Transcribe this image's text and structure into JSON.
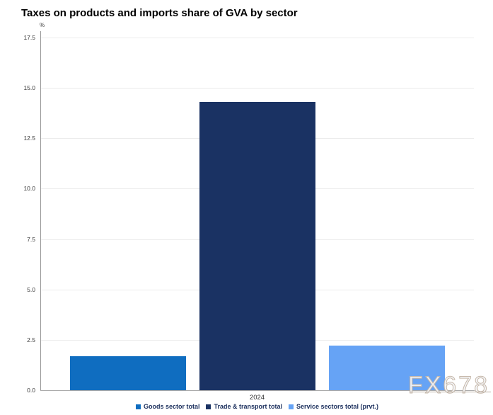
{
  "chart_data": {
    "type": "bar",
    "title": "Taxes on products and imports share of GVA by sector",
    "unit_label": "%",
    "xlabel": "",
    "ylabel": "%",
    "categories": [
      "2024"
    ],
    "series": [
      {
        "name": "Goods sector total",
        "color": "#0F6DC0",
        "values": [
          1.7
        ]
      },
      {
        "name": "Trade & transport total",
        "color": "#1A3263",
        "values": [
          14.3
        ]
      },
      {
        "name": "Service sectors total (prvt.)",
        "color": "#66A3F5",
        "values": [
          2.2
        ]
      }
    ],
    "ylim": [
      0,
      17.5
    ],
    "yticks": [
      "17.5",
      "15.0",
      "12.5",
      "10.0",
      "7.5",
      "5.0",
      "2.5",
      "0.0"
    ],
    "grid": true,
    "legend_position": "bottom"
  },
  "watermark": {
    "text": "FX678"
  },
  "colors": {
    "background": "#ffffff",
    "axis_line": "#999999",
    "gridline": "#ececec",
    "tick_label": "#3c3c3c",
    "legend_text": "#1a2e5c",
    "title_text": "#000000"
  }
}
